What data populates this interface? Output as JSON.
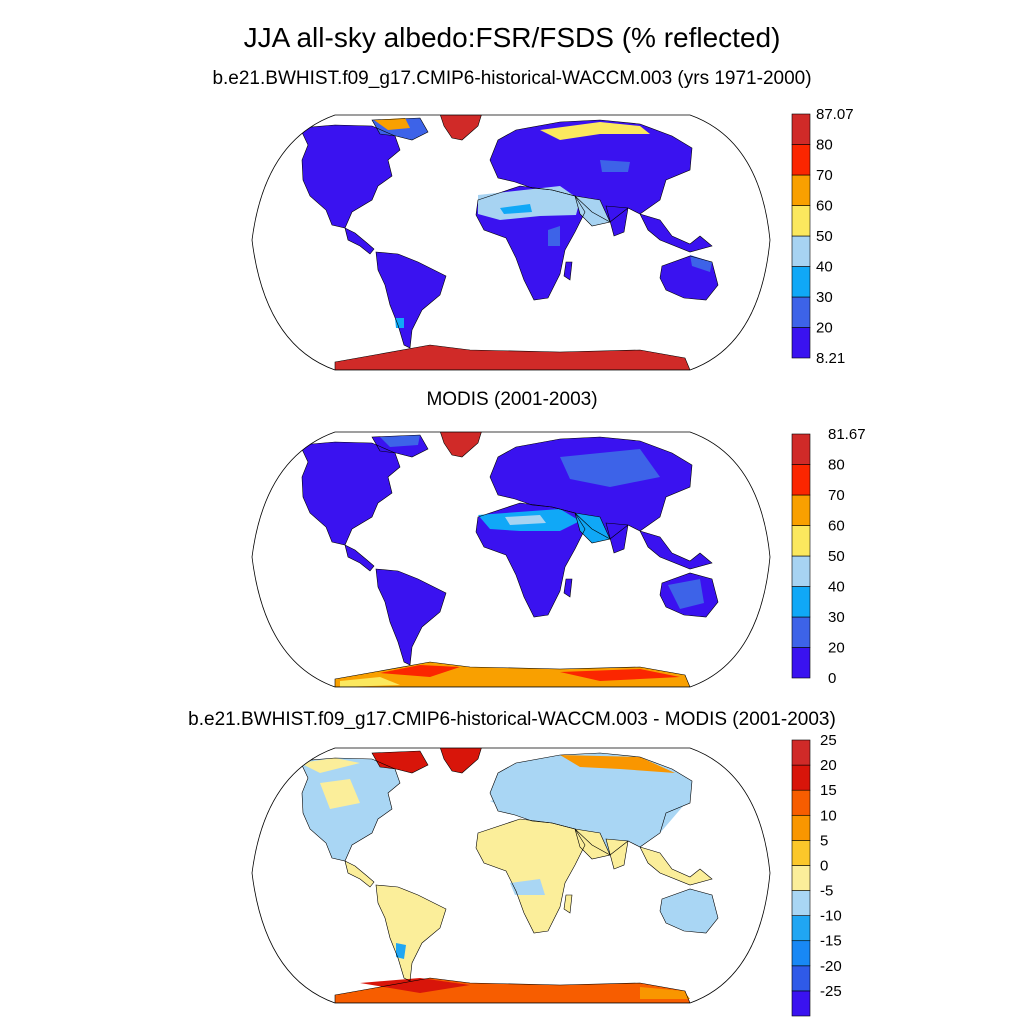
{
  "title": "JJA all-sky albedo:FSR/FSDS (% reflected)",
  "panels": [
    {
      "id": "model",
      "title": "b.e21.BWHIST.f09_g17.CMIP6-historical-WACCM.003 (yrs 1971-2000)",
      "colorbar": {
        "colors": [
          "#3a12f0",
          "#3d63e8",
          "#10a8f7",
          "#a7d3f2",
          "#fbe85e",
          "#f9a000",
          "#fb2600",
          "#d02a28"
        ],
        "labels": [
          "8.21",
          "20",
          "30",
          "40",
          "50",
          "60",
          "70",
          "80",
          "87.07"
        ]
      }
    },
    {
      "id": "obs",
      "title": "MODIS (2001-2003)",
      "colorbar": {
        "colors": [
          "#3a12f0",
          "#3d63e8",
          "#10a8f7",
          "#a7d3f2",
          "#fbe85e",
          "#f9a000",
          "#fb2600",
          "#d02a28"
        ],
        "labels": [
          "0",
          "20",
          "30",
          "40",
          "50",
          "60",
          "70",
          "80",
          "81.67"
        ]
      }
    },
    {
      "id": "diff",
      "title": "b.e21.BWHIST.f09_g17.CMIP6-historical-WACCM.003 - MODIS (2001-2003)",
      "colorbar": {
        "colors": [
          "#3a12f0",
          "#2f5ae8",
          "#1888f5",
          "#20a6f3",
          "#a9d6f4",
          "#fbee9a",
          "#fbc72a",
          "#f99600",
          "#f75d00",
          "#d8150a",
          "#d02a28"
        ],
        "labels": [
          "-25",
          "-20",
          "-15",
          "-10",
          "-5",
          "0",
          "5",
          "10",
          "15",
          "20",
          "25"
        ]
      }
    }
  ]
}
